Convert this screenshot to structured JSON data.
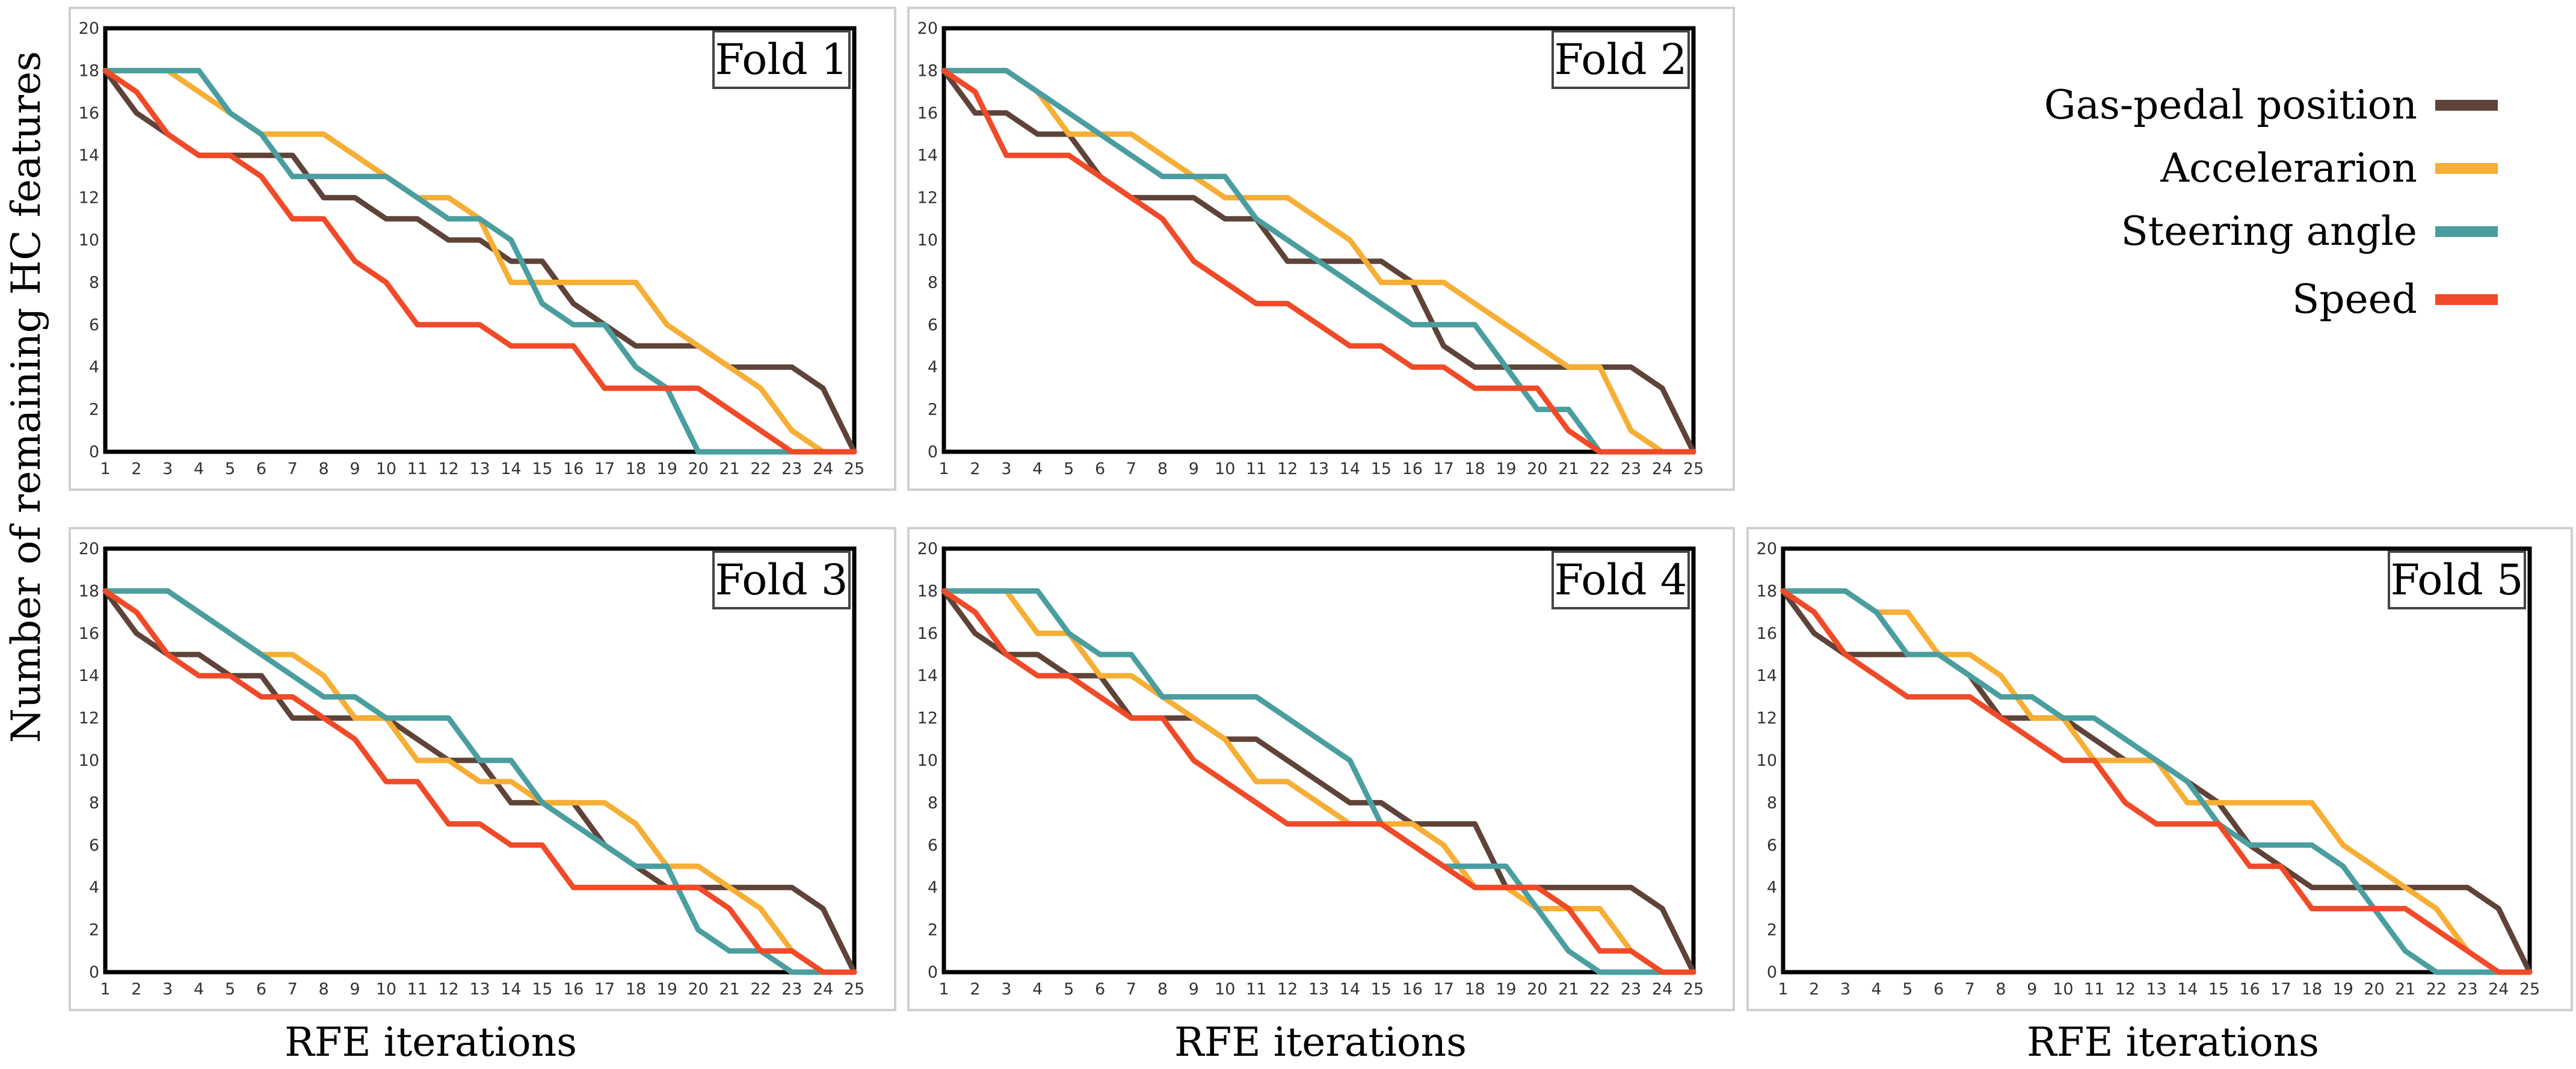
{
  "chart_data": {
    "type": "line",
    "ylabel": "Number of remaining HC features",
    "xlabel": "RFE iterations",
    "x": [
      1,
      2,
      3,
      4,
      5,
      6,
      7,
      8,
      9,
      10,
      11,
      12,
      13,
      14,
      15,
      16,
      17,
      18,
      19,
      20,
      21,
      22,
      23,
      24,
      25
    ],
    "xlim": [
      1,
      25
    ],
    "ylim": [
      0,
      20
    ],
    "yticks": [
      0,
      2,
      4,
      6,
      8,
      10,
      12,
      14,
      16,
      18,
      20
    ],
    "grid": false,
    "legend": {
      "placement": "top-right",
      "items": [
        {
          "key": "gas",
          "label": "Gas-pedal position",
          "color": "#5f4338"
        },
        {
          "key": "acc",
          "label": "Accelerarion",
          "color": "#f6ae34"
        },
        {
          "key": "steer",
          "label": "Steering angle",
          "color": "#4a9ea0"
        },
        {
          "key": "speed",
          "label": "Speed",
          "color": "#f04a28"
        }
      ]
    },
    "folds": [
      {
        "title": "Fold 1",
        "series": {
          "gas": [
            18,
            16,
            15,
            14,
            14,
            14,
            14,
            12,
            12,
            11,
            11,
            10,
            10,
            9,
            9,
            7,
            6,
            5,
            5,
            5,
            4,
            4,
            4,
            3,
            0
          ],
          "acc": [
            18,
            18,
            18,
            17,
            16,
            15,
            15,
            15,
            14,
            13,
            12,
            12,
            11,
            8,
            8,
            8,
            8,
            8,
            6,
            5,
            4,
            3,
            1,
            0,
            0
          ],
          "steer": [
            18,
            18,
            18,
            18,
            16,
            15,
            13,
            13,
            13,
            13,
            12,
            11,
            11,
            10,
            7,
            6,
            6,
            4,
            3,
            0,
            0,
            0,
            0,
            0,
            0
          ],
          "speed": [
            18,
            17,
            15,
            14,
            14,
            13,
            11,
            11,
            9,
            8,
            6,
            6,
            6,
            5,
            5,
            5,
            3,
            3,
            3,
            3,
            2,
            1,
            0,
            0,
            0
          ]
        }
      },
      {
        "title": "Fold 2",
        "series": {
          "gas": [
            18,
            16,
            16,
            15,
            15,
            13,
            12,
            12,
            12,
            11,
            11,
            9,
            9,
            9,
            9,
            8,
            5,
            4,
            4,
            4,
            4,
            4,
            4,
            3,
            0
          ],
          "acc": [
            18,
            18,
            18,
            17,
            15,
            15,
            15,
            14,
            13,
            12,
            12,
            12,
            11,
            10,
            8,
            8,
            8,
            7,
            6,
            5,
            4,
            4,
            1,
            0,
            0
          ],
          "steer": [
            18,
            18,
            18,
            17,
            16,
            15,
            14,
            13,
            13,
            13,
            11,
            10,
            9,
            8,
            7,
            6,
            6,
            6,
            4,
            2,
            2,
            0,
            0,
            0,
            0
          ],
          "speed": [
            18,
            17,
            14,
            14,
            14,
            13,
            12,
            11,
            9,
            8,
            7,
            7,
            6,
            5,
            5,
            4,
            4,
            3,
            3,
            3,
            1,
            0,
            0,
            0,
            0
          ]
        }
      },
      {
        "title": "Fold 3",
        "series": {
          "gas": [
            18,
            16,
            15,
            15,
            14,
            14,
            12,
            12,
            12,
            12,
            11,
            10,
            10,
            8,
            8,
            8,
            6,
            5,
            4,
            4,
            4,
            4,
            4,
            3,
            0
          ],
          "acc": [
            18,
            18,
            18,
            17,
            16,
            15,
            15,
            14,
            12,
            12,
            10,
            10,
            9,
            9,
            8,
            8,
            8,
            7,
            5,
            5,
            4,
            3,
            1,
            0,
            0
          ],
          "steer": [
            18,
            18,
            18,
            17,
            16,
            15,
            14,
            13,
            13,
            12,
            12,
            12,
            10,
            10,
            8,
            7,
            6,
            5,
            5,
            2,
            1,
            1,
            0,
            0,
            0
          ],
          "speed": [
            18,
            17,
            15,
            14,
            14,
            13,
            13,
            12,
            11,
            9,
            9,
            7,
            7,
            6,
            6,
            4,
            4,
            4,
            4,
            4,
            3,
            1,
            1,
            0,
            0
          ]
        }
      },
      {
        "title": "Fold 4",
        "series": {
          "gas": [
            18,
            16,
            15,
            15,
            14,
            14,
            12,
            12,
            12,
            11,
            11,
            10,
            9,
            8,
            8,
            7,
            7,
            7,
            4,
            4,
            4,
            4,
            4,
            3,
            0
          ],
          "acc": [
            18,
            18,
            18,
            16,
            16,
            14,
            14,
            13,
            12,
            11,
            9,
            9,
            8,
            7,
            7,
            7,
            6,
            4,
            4,
            3,
            3,
            3,
            1,
            0,
            0
          ],
          "steer": [
            18,
            18,
            18,
            18,
            16,
            15,
            15,
            13,
            13,
            13,
            13,
            12,
            11,
            10,
            7,
            6,
            5,
            5,
            5,
            3,
            1,
            0,
            0,
            0,
            0
          ],
          "speed": [
            18,
            17,
            15,
            14,
            14,
            13,
            12,
            12,
            10,
            9,
            8,
            7,
            7,
            7,
            7,
            6,
            5,
            4,
            4,
            4,
            3,
            1,
            1,
            0,
            0
          ]
        }
      },
      {
        "title": "Fold 5",
        "series": {
          "gas": [
            18,
            16,
            15,
            15,
            15,
            15,
            14,
            12,
            12,
            12,
            11,
            10,
            10,
            9,
            8,
            6,
            5,
            4,
            4,
            4,
            4,
            4,
            4,
            3,
            0
          ],
          "acc": [
            18,
            18,
            18,
            17,
            17,
            15,
            15,
            14,
            12,
            12,
            10,
            10,
            10,
            8,
            8,
            8,
            8,
            8,
            6,
            5,
            4,
            3,
            1,
            0,
            0
          ],
          "steer": [
            18,
            18,
            18,
            17,
            15,
            15,
            14,
            13,
            13,
            12,
            12,
            11,
            10,
            9,
            7,
            6,
            6,
            6,
            5,
            3,
            1,
            0,
            0,
            0,
            0
          ],
          "speed": [
            18,
            17,
            15,
            14,
            13,
            13,
            13,
            12,
            11,
            10,
            10,
            8,
            7,
            7,
            7,
            5,
            5,
            3,
            3,
            3,
            3,
            2,
            1,
            0,
            0
          ]
        }
      }
    ]
  }
}
